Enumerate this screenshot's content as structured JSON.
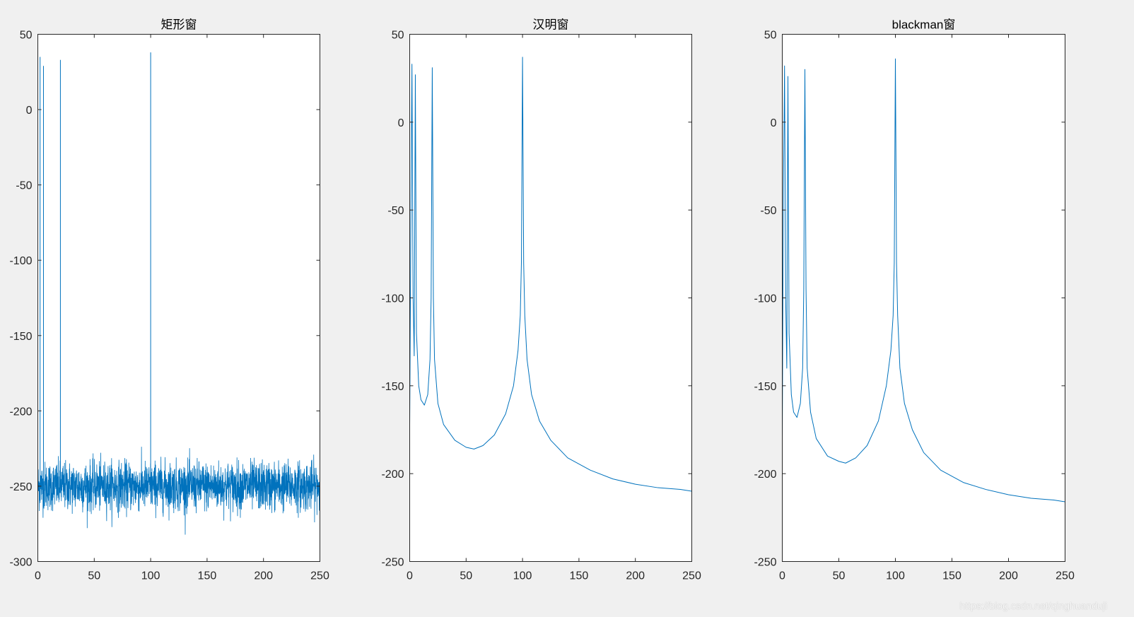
{
  "figure": {
    "background": "#f0f0f0",
    "axes_background": "#ffffff",
    "line_color": "#0072bd",
    "watermark": "https://blog.csdn.net/qinghuanduji"
  },
  "chart_data": [
    {
      "type": "line",
      "title": "矩形窗",
      "xlabel": "",
      "ylabel": "",
      "xlim": [
        0,
        250
      ],
      "ylim": [
        -300,
        50
      ],
      "xticks": [
        0,
        50,
        100,
        150,
        200,
        250
      ],
      "yticks": [
        -300,
        -250,
        -200,
        -150,
        -100,
        -50,
        0,
        50
      ],
      "grid": false,
      "noise_floor": {
        "mean": -250,
        "min": -290,
        "max": -213
      },
      "peaks": [
        {
          "x": 2,
          "y": 35
        },
        {
          "x": 5,
          "y": 29
        },
        {
          "x": 20,
          "y": 33
        },
        {
          "x": 100,
          "y": 38
        }
      ]
    },
    {
      "type": "line",
      "title": "汉明窗",
      "xlabel": "",
      "ylabel": "",
      "xlim": [
        0,
        250
      ],
      "ylim": [
        -250,
        50
      ],
      "xticks": [
        0,
        50,
        100,
        150,
        200,
        250
      ],
      "yticks": [
        -250,
        -200,
        -150,
        -100,
        -50,
        0,
        50
      ],
      "grid": false,
      "series": [
        {
          "x": [
            0,
            1,
            2,
            3,
            4,
            5,
            6,
            8,
            10,
            13,
            16,
            18,
            19,
            20,
            21,
            22,
            25,
            30,
            40,
            50,
            57,
            65,
            75,
            85,
            92,
            96,
            98,
            99,
            100,
            101,
            102,
            104,
            108,
            115,
            125,
            140,
            160,
            180,
            200,
            220,
            240,
            250
          ],
          "y": [
            -172,
            -60,
            33,
            -100,
            -133,
            27,
            -120,
            -150,
            -158,
            -161,
            -155,
            -135,
            -100,
            31,
            -100,
            -135,
            -160,
            -172,
            -181,
            -185,
            -186,
            -184,
            -178,
            -166,
            -150,
            -130,
            -110,
            -80,
            37,
            -80,
            -110,
            -135,
            -155,
            -170,
            -181,
            -191,
            -198,
            -203,
            -206,
            -208,
            -209,
            -210
          ]
        }
      ]
    },
    {
      "type": "line",
      "title": "blackman窗",
      "xlabel": "",
      "ylabel": "",
      "xlim": [
        0,
        250
      ],
      "ylim": [
        -250,
        50
      ],
      "xticks": [
        0,
        50,
        100,
        150,
        200,
        250
      ],
      "yticks": [
        -250,
        -200,
        -150,
        -100,
        -50,
        0,
        50
      ],
      "grid": false,
      "series": [
        {
          "x": [
            0,
            1,
            2,
            3,
            4,
            5,
            6,
            8,
            10,
            13,
            16,
            18,
            19,
            20,
            21,
            22,
            25,
            30,
            40,
            50,
            56,
            65,
            75,
            85,
            92,
            96,
            98,
            99,
            100,
            101,
            102,
            104,
            108,
            115,
            125,
            140,
            160,
            180,
            200,
            220,
            240,
            250
          ],
          "y": [
            -180,
            -40,
            32,
            -100,
            -140,
            26,
            -120,
            -155,
            -165,
            -168,
            -160,
            -140,
            -95,
            30,
            -95,
            -140,
            -165,
            -180,
            -190,
            -193,
            -194,
            -191,
            -184,
            -170,
            -150,
            -130,
            -110,
            -80,
            36,
            -80,
            -110,
            -140,
            -160,
            -175,
            -188,
            -198,
            -205,
            -209,
            -212,
            -214,
            -215,
            -216
          ]
        }
      ]
    }
  ]
}
